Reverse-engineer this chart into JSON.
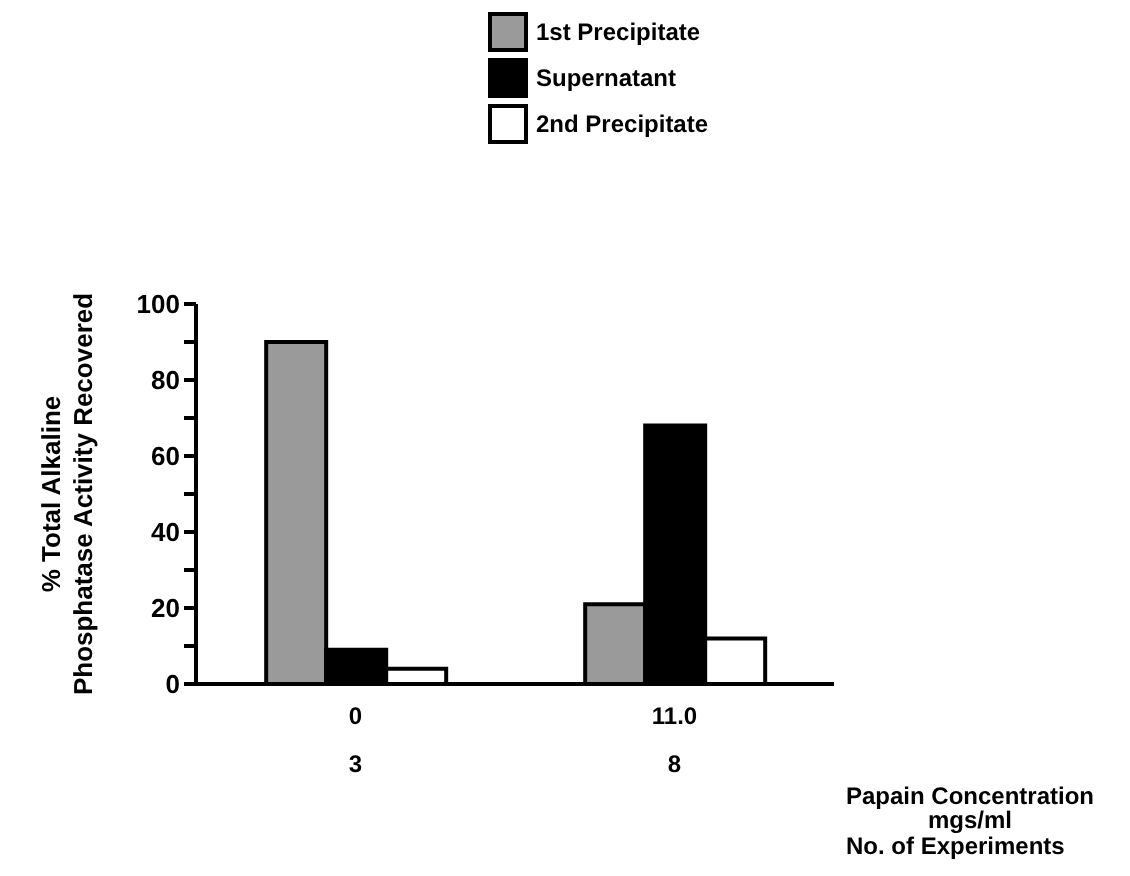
{
  "chart_data": {
    "type": "bar",
    "categories": [
      "0",
      "11.0"
    ],
    "series": [
      {
        "name": "1st Precipitate",
        "color": "#9a9a9a",
        "values": [
          90,
          21
        ]
      },
      {
        "name": "Supernatant",
        "color": "#000000",
        "values": [
          9,
          68
        ]
      },
      {
        "name": "2nd Precipitate",
        "color": "#ffffff",
        "values": [
          4,
          12
        ]
      }
    ],
    "ylabel": "% Total Alkaline\nPhosphatase Activity Recovered",
    "xlabel": "Papain Concentration\nmgs/ml",
    "annotations": [
      "3",
      "8",
      "No. of Experiments"
    ],
    "ylim": [
      0,
      100
    ],
    "yticks": [
      0,
      {
        "value": 10,
        "label": null
      },
      20,
      {
        "value": 30,
        "label": null
      },
      40,
      {
        "value": 50,
        "label": null
      },
      60,
      {
        "value": 70,
        "label": null
      },
      80,
      {
        "value": 90,
        "label": null
      },
      100
    ],
    "grid": false,
    "legend": "top"
  }
}
